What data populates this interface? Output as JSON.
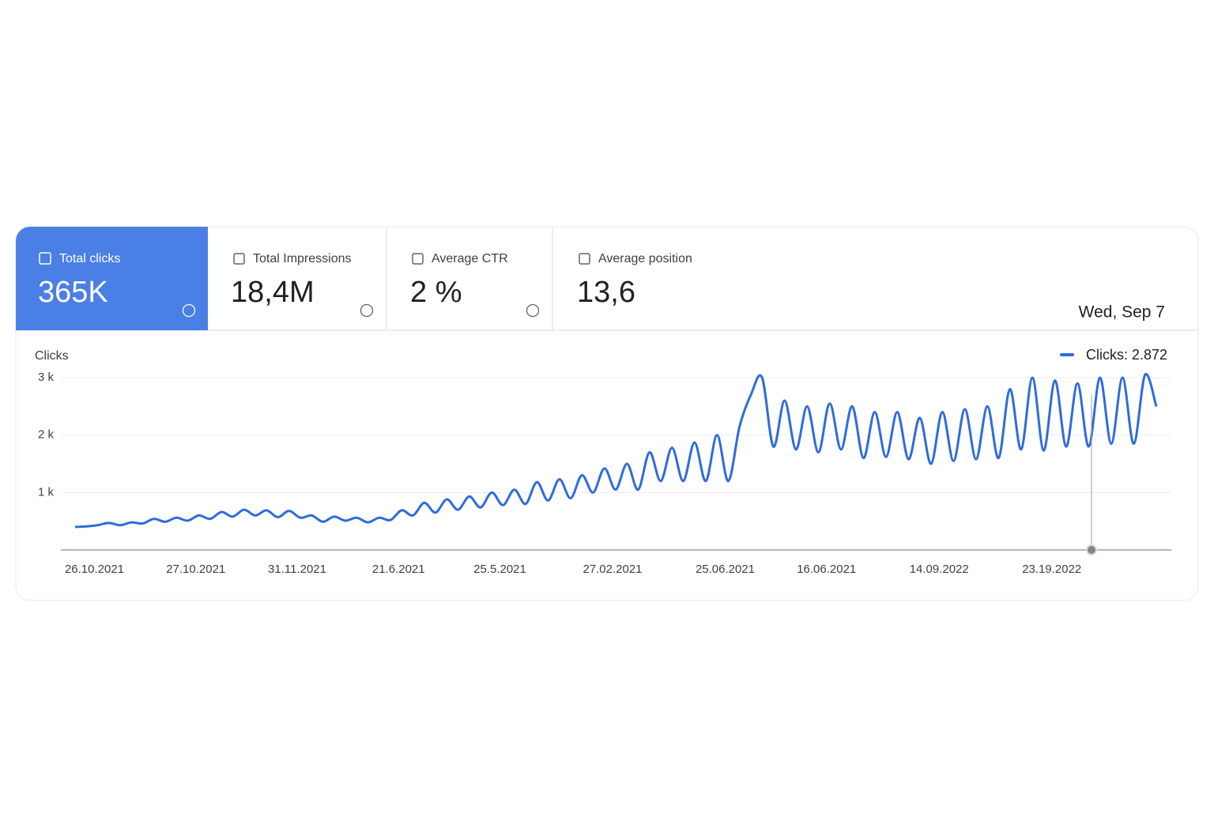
{
  "metrics": [
    {
      "label": "Total clicks",
      "value": "365K"
    },
    {
      "label": "Total Impressions",
      "value": "18,4M"
    },
    {
      "label": "Average CTR",
      "value": "2 %"
    },
    {
      "label": "Average position",
      "value": "13,6"
    }
  ],
  "tooltip": {
    "date": "Wed, Sep 7",
    "label": "Clicks: 2.872"
  },
  "chart_data": {
    "type": "line",
    "ylabel": "Clicks",
    "color": "#2f6bdc",
    "categories": [
      null,
      null,
      "26.10.2021",
      null,
      null,
      null,
      null,
      null,
      null,
      null,
      null,
      "27.10.2021",
      null,
      null,
      null,
      null,
      null,
      null,
      null,
      null,
      "31.11.2021",
      null,
      null,
      null,
      null,
      null,
      null,
      null,
      null,
      "21.6.2021",
      null,
      null,
      null,
      null,
      null,
      null,
      null,
      null,
      "25.5.2021",
      null,
      null,
      null,
      null,
      null,
      null,
      null,
      null,
      null,
      "27.02.2021",
      null,
      null,
      null,
      null,
      null,
      null,
      null,
      null,
      null,
      "25.06.2021",
      null,
      null,
      null,
      null,
      null,
      null,
      null,
      null,
      "16.06.2021",
      null,
      null,
      null,
      null,
      null,
      null,
      null,
      null,
      null,
      "14.09.2022",
      null,
      null,
      null,
      null,
      null,
      null,
      null,
      null,
      null,
      "23.19.2022",
      null,
      null,
      null,
      null,
      null,
      null,
      null,
      null,
      null
    ],
    "values": [
      400,
      410,
      430,
      470,
      430,
      480,
      460,
      540,
      490,
      560,
      510,
      600,
      540,
      660,
      580,
      700,
      600,
      690,
      570,
      680,
      560,
      600,
      490,
      580,
      510,
      560,
      480,
      560,
      520,
      690,
      600,
      820,
      650,
      880,
      700,
      930,
      740,
      1000,
      780,
      1050,
      800,
      1180,
      860,
      1230,
      900,
      1300,
      1000,
      1420,
      1050,
      1500,
      1050,
      1700,
      1200,
      1780,
      1200,
      1870,
      1200,
      2000,
      1200,
      2150,
      2700,
      3000,
      1800,
      2600,
      1750,
      2500,
      1700,
      2550,
      1750,
      2500,
      1600,
      2400,
      1620,
      2400,
      1580,
      2300,
      1500,
      2400,
      1550,
      2450,
      1580,
      2500,
      1600,
      2800,
      1750,
      3000,
      1730,
      2950,
      1800,
      2900,
      1800,
      3000,
      1850,
      3000,
      1850,
      3050,
      2500
    ],
    "ylim": [
      0,
      3000
    ],
    "yticks": [
      {
        "value": 1000,
        "label": "1 k"
      },
      {
        "value": 2000,
        "label": "2 k"
      },
      {
        "value": 3000,
        "label": "3 k"
      }
    ],
    "grid": true
  }
}
